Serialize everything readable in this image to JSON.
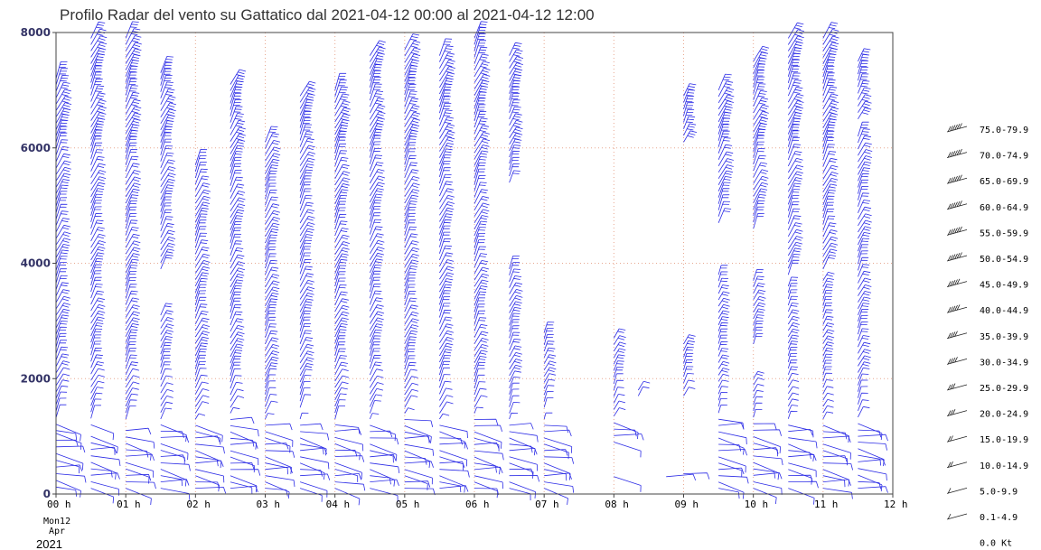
{
  "chart_data": {
    "type": "wind-barb-profile",
    "title": "Profilo Radar del vento su Gattatico dal 2021-04-12 00:00 al 2021-04-12 12:00",
    "xlabel": "",
    "ylabel": "",
    "xlim": [
      0,
      12
    ],
    "ylim": [
      0,
      8000
    ],
    "x_ticks": [
      "00 h",
      "01 h",
      "02 h",
      "03 h",
      "04 h",
      "05 h",
      "06 h",
      "07 h",
      "08 h",
      "09 h",
      "10 h",
      "11 h",
      "12 h"
    ],
    "y_ticks": [
      0,
      2000,
      4000,
      6000,
      8000
    ],
    "date_label": [
      "Mon12",
      "Apr",
      "2021"
    ],
    "grid": true,
    "barb_color": "#2b2be6",
    "legend_position": "right",
    "legend": [
      "75.0-79.9",
      "70.0-74.9",
      "65.0-69.9",
      "60.0-64.9",
      "55.0-59.9",
      "50.0-54.9",
      "45.0-49.9",
      "40.0-44.9",
      "35.0-39.9",
      "30.0-34.9",
      "25.0-29.9",
      "20.0-24.9",
      "15.0-19.9",
      "10.0-14.9",
      "5.0-9.9",
      "0.1-4.9",
      "0.0 Kt"
    ],
    "profiles": [
      {
        "t": 0.0,
        "segments": [
          [
            1100,
            7200,
            14
          ],
          [
            120,
            1050,
            6
          ]
        ]
      },
      {
        "t": 0.5,
        "segments": [
          [
            1200,
            7900,
            14
          ],
          [
            100,
            1000,
            6
          ]
        ]
      },
      {
        "t": 1.0,
        "segments": [
          [
            1300,
            7900,
            14
          ],
          [
            100,
            1100,
            6
          ]
        ]
      },
      {
        "t": 1.5,
        "segments": [
          [
            3900,
            7300,
            14
          ],
          [
            1300,
            3100,
            12
          ],
          [
            100,
            1200,
            6
          ]
        ]
      },
      {
        "t": 2.0,
        "segments": [
          [
            1400,
            5700,
            14
          ],
          [
            100,
            1300,
            6
          ]
        ]
      },
      {
        "t": 2.5,
        "segments": [
          [
            1500,
            7100,
            14
          ],
          [
            100,
            1400,
            6
          ]
        ]
      },
      {
        "t": 3.0,
        "segments": [
          [
            1400,
            6100,
            14
          ],
          [
            100,
            1300,
            6
          ]
        ]
      },
      {
        "t": 3.5,
        "segments": [
          [
            1500,
            6900,
            14
          ],
          [
            100,
            1300,
            6
          ]
        ]
      },
      {
        "t": 4.0,
        "segments": [
          [
            1300,
            7000,
            14
          ],
          [
            100,
            1200,
            6
          ]
        ]
      },
      {
        "t": 4.5,
        "segments": [
          [
            1400,
            7600,
            14
          ],
          [
            100,
            1300,
            6
          ]
        ]
      },
      {
        "t": 5.0,
        "segments": [
          [
            1500,
            7700,
            14
          ],
          [
            100,
            1400,
            6
          ]
        ]
      },
      {
        "t": 5.5,
        "segments": [
          [
            1400,
            7600,
            14
          ],
          [
            100,
            1300,
            6
          ]
        ]
      },
      {
        "t": 6.0,
        "segments": [
          [
            1500,
            7900,
            14
          ],
          [
            100,
            1400,
            6
          ]
        ]
      },
      {
        "t": 6.5,
        "segments": [
          [
            5400,
            7600,
            10
          ],
          [
            1400,
            3900,
            12
          ],
          [
            100,
            1300,
            6
          ]
        ]
      },
      {
        "t": 7.0,
        "segments": [
          [
            1500,
            2800,
            10
          ],
          [
            100,
            1300,
            6
          ]
        ]
      },
      {
        "t": 8.0,
        "segments": [
          [
            900,
            2700,
            10
          ],
          [
            300,
            300,
            6
          ]
        ]
      },
      {
        "t": 8.35,
        "segments": [
          [
            1700,
            1800,
            10
          ]
        ]
      },
      {
        "t": 8.75,
        "segments": [
          [
            300,
            300,
            6
          ]
        ]
      },
      {
        "t": 9.0,
        "segments": [
          [
            6100,
            6900,
            10
          ],
          [
            1700,
            2600,
            10
          ],
          [
            350,
            400,
            6
          ]
        ]
      },
      {
        "t": 9.5,
        "segments": [
          [
            4700,
            7000,
            14
          ],
          [
            100,
            3800,
            8
          ]
        ]
      },
      {
        "t": 10.0,
        "segments": [
          [
            4600,
            7500,
            14
          ],
          [
            2600,
            3700,
            10
          ],
          [
            100,
            2000,
            8
          ]
        ]
      },
      {
        "t": 10.5,
        "segments": [
          [
            3800,
            7900,
            14
          ],
          [
            100,
            3600,
            8
          ]
        ]
      },
      {
        "t": 11.0,
        "segments": [
          [
            3900,
            7900,
            14
          ],
          [
            100,
            3700,
            8
          ]
        ]
      },
      {
        "t": 11.5,
        "segments": [
          [
            6500,
            7500,
            10
          ],
          [
            1000,
            6200,
            12
          ],
          [
            100,
            900,
            6
          ]
        ]
      }
    ]
  }
}
